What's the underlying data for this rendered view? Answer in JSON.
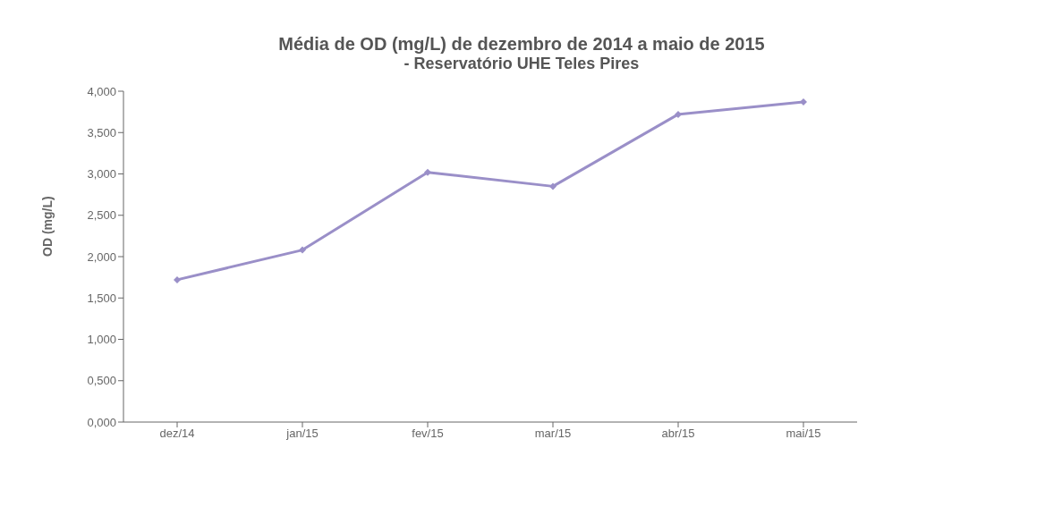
{
  "chart_data": {
    "type": "line",
    "title": "Média de OD (mg/L) de dezembro de 2014 a maio de 2015",
    "subtitle": "- Reservatório UHE Teles Pires",
    "ylabel": "OD (mg/L)",
    "categories": [
      "dez/14",
      "jan/15",
      "fev/15",
      "mar/15",
      "abr/15",
      "mai/15"
    ],
    "series": [
      {
        "color": "#9a8fc8",
        "values": [
          1.72,
          2.08,
          3.02,
          2.85,
          3.72,
          3.87
        ]
      }
    ],
    "ylim": [
      0,
      4
    ],
    "yticks": [
      {
        "value": 0,
        "label": "0,000"
      },
      {
        "value": 0.5,
        "label": "0,500"
      },
      {
        "value": 1,
        "label": "1,000"
      },
      {
        "value": 1.5,
        "label": "1,500"
      },
      {
        "value": 2,
        "label": "2,000"
      },
      {
        "value": 2.5,
        "label": "2,500"
      },
      {
        "value": 3,
        "label": "3,000"
      },
      {
        "value": 3.5,
        "label": "3,500"
      },
      {
        "value": 4,
        "label": "4,000"
      }
    ],
    "marker": "diamond",
    "legend": false,
    "grid": false
  }
}
